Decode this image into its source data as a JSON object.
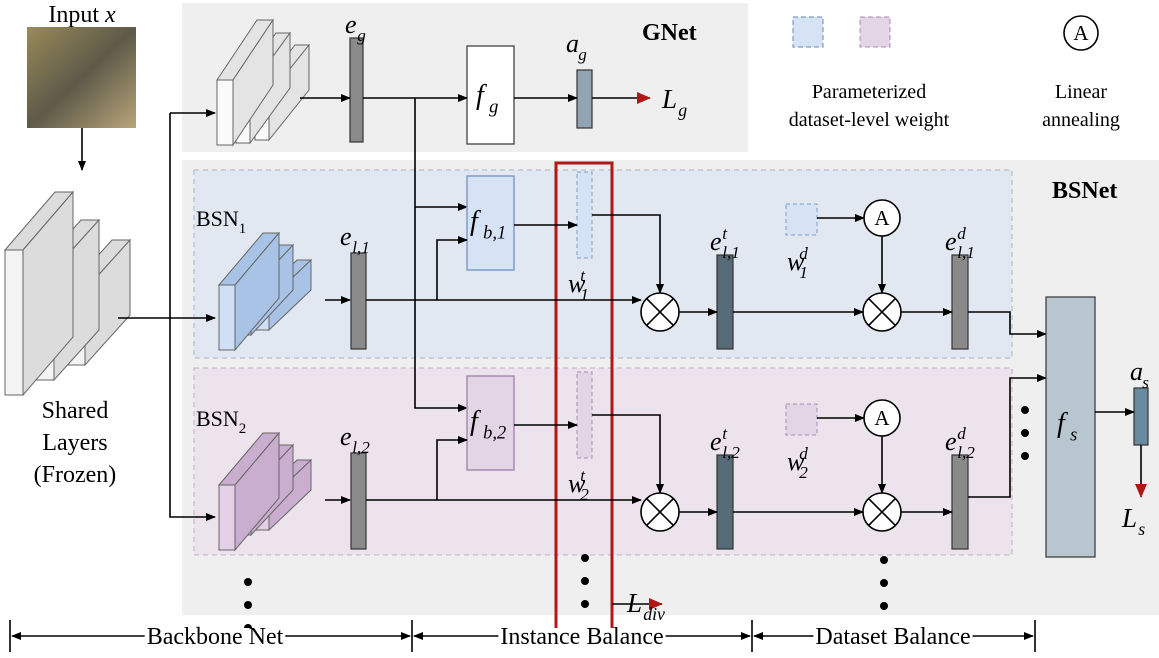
{
  "input": {
    "text": "Input",
    "var": "x"
  },
  "shared": [
    "Shared",
    "Layers",
    "(Frozen)"
  ],
  "gnet": "GNet",
  "bsnet": "BSNet",
  "bsn": [
    {
      "text": "BSN",
      "sub": "1"
    },
    {
      "text": "BSN",
      "sub": "2"
    }
  ],
  "legend": {
    "weight": [
      "Parameterized",
      "dataset-level weight"
    ],
    "annealing": [
      "Linear",
      "annealing"
    ],
    "symbol": "A"
  },
  "labels": {
    "e_g": {
      "base": "e",
      "sub": "g"
    },
    "f_g": {
      "base": "f",
      "sub": "g"
    },
    "a_g": {
      "base": "a",
      "sub": "g"
    },
    "L_g": {
      "base": "L",
      "sub": "g"
    },
    "e_l1": {
      "base": "e",
      "sub": "l,1"
    },
    "f_b1": {
      "base": "f",
      "sub": "b,1"
    },
    "w_1t": {
      "base": "w",
      "sub": "1",
      "sup": "t"
    },
    "e_l1t": {
      "base": "e",
      "sub": "l,1",
      "sup": "t"
    },
    "w_1d": {
      "base": "w",
      "sub": "1",
      "sup": "d"
    },
    "e_l1d": {
      "base": "e",
      "sub": "l,1",
      "sup": "d"
    },
    "e_l2": {
      "base": "e",
      "sub": "l,2"
    },
    "f_b2": {
      "base": "f",
      "sub": "b,2"
    },
    "w_2t": {
      "base": "w",
      "sub": "2",
      "sup": "t"
    },
    "e_l2t": {
      "base": "e",
      "sub": "l,2",
      "sup": "t"
    },
    "w_2d": {
      "base": "w",
      "sub": "2",
      "sup": "d"
    },
    "e_l2d": {
      "base": "e",
      "sub": "l,2",
      "sup": "d"
    },
    "f_s": {
      "base": "f",
      "sub": "s"
    },
    "a_s": {
      "base": "a",
      "sub": "s"
    },
    "L_s": {
      "base": "L",
      "sub": "s"
    },
    "L_div": {
      "base": "L",
      "sub": "div"
    }
  },
  "bottom": [
    "Backbone Net",
    "Instance Balance",
    "Dataset Balance"
  ]
}
